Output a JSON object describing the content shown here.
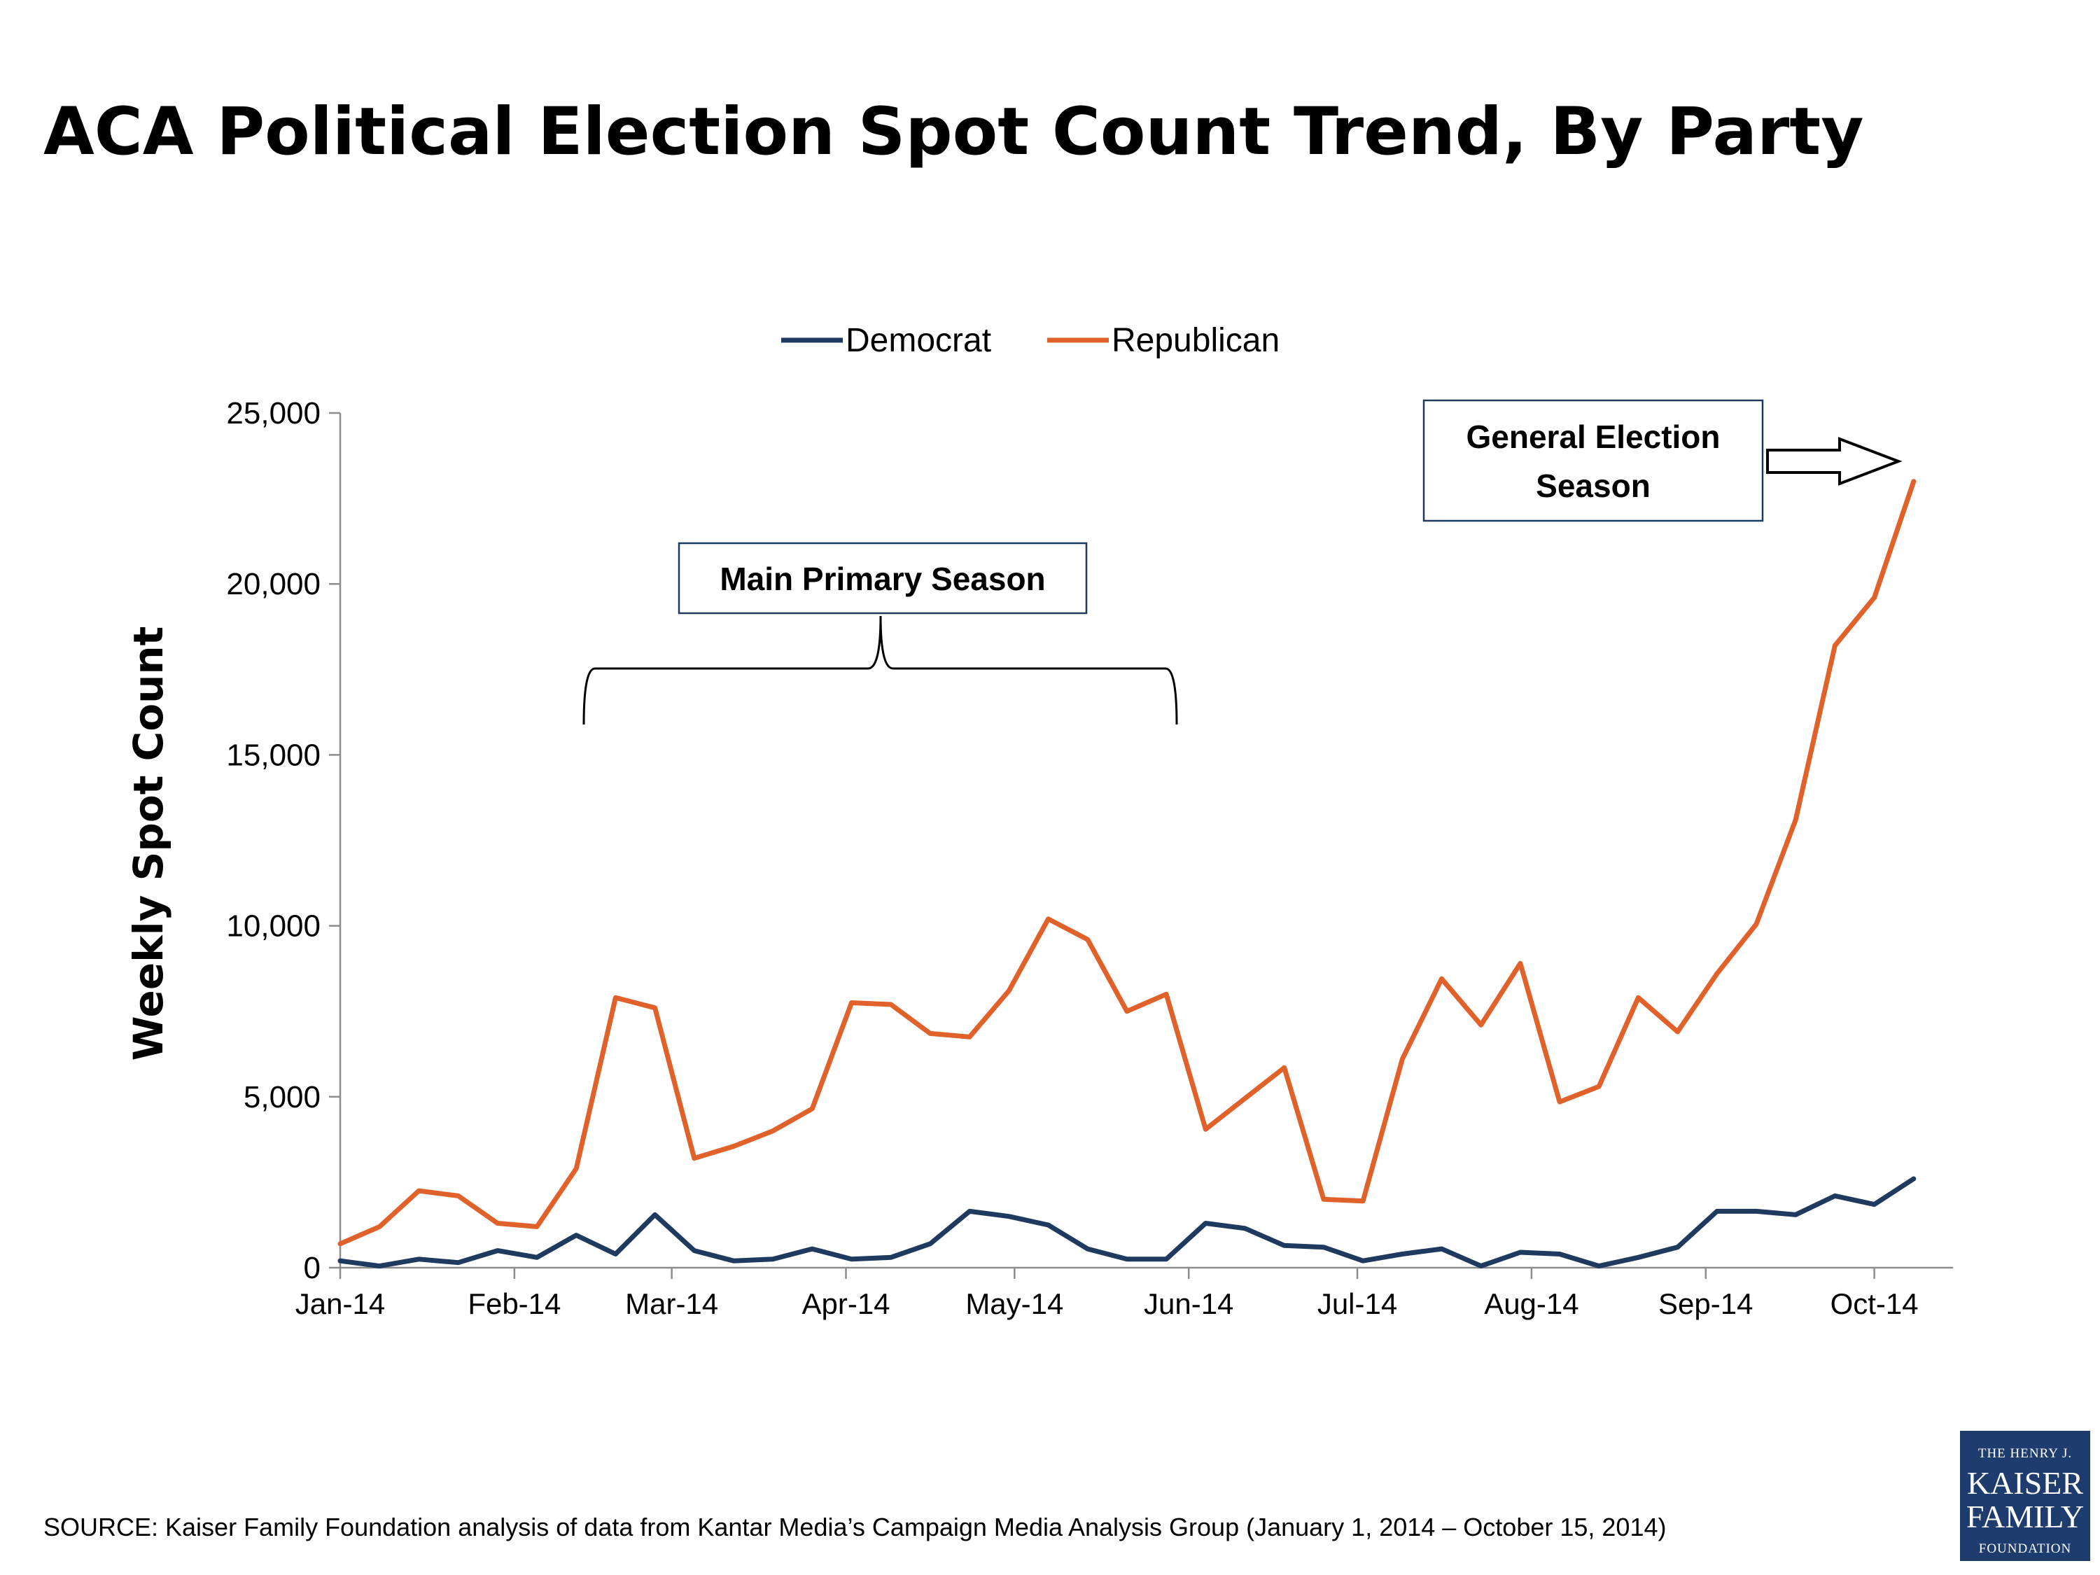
{
  "colors": {
    "democrat": "#1f3a5f",
    "republican": "#e0622a",
    "axis": "#8c8c8c",
    "logo_bg": "#1f3c6e"
  },
  "source_text": "SOURCE: Kaiser Family Foundation analysis of data from Kantar Media’s Campaign Media Analysis Group (January 1, 2014 – October 15, 2014)",
  "logo": {
    "line1": "THE HENRY J.",
    "line2": "KAISER",
    "line3": "FAMILY",
    "line4": "FOUNDATION"
  },
  "annotations": {
    "primary": "Main Primary Season",
    "general_line1": "General Election",
    "general_line2": "Season"
  },
  "chart_data": {
    "type": "line",
    "title": "ACA Political Election Spot Count Trend, By Party",
    "xlabel": "",
    "ylabel": "Weekly Spot Count",
    "ylim": [
      0,
      25000
    ],
    "yticks": [
      "0",
      "5,000",
      "10,000",
      "15,000",
      "20,000",
      "25,000"
    ],
    "ytick_values": [
      0,
      5000,
      10000,
      15000,
      20000,
      25000
    ],
    "xtick_labels": [
      "Jan-14",
      "Feb-14",
      "Mar-14",
      "Apr-14",
      "May-14",
      "Jun-14",
      "Jul-14",
      "Aug-14",
      "Sep-14",
      "Oct-14"
    ],
    "xtick_dates": [
      "2014-01-01",
      "2014-02-01",
      "2014-03-01",
      "2014-04-01",
      "2014-05-01",
      "2014-06-01",
      "2014-07-01",
      "2014-08-01",
      "2014-09-01",
      "2014-10-01"
    ],
    "x_range": [
      "2014-01-01",
      "2014-10-15"
    ],
    "legend_position": "top-center",
    "grid": false,
    "x": [
      "2014-01-01",
      "2014-01-08",
      "2014-01-15",
      "2014-01-22",
      "2014-01-29",
      "2014-02-05",
      "2014-02-12",
      "2014-02-19",
      "2014-02-26",
      "2014-03-05",
      "2014-03-12",
      "2014-03-19",
      "2014-03-26",
      "2014-04-02",
      "2014-04-09",
      "2014-04-16",
      "2014-04-23",
      "2014-04-30",
      "2014-05-07",
      "2014-05-14",
      "2014-05-21",
      "2014-05-28",
      "2014-06-04",
      "2014-06-11",
      "2014-06-18",
      "2014-06-25",
      "2014-07-02",
      "2014-07-09",
      "2014-07-16",
      "2014-07-23",
      "2014-07-30",
      "2014-08-06",
      "2014-08-13",
      "2014-08-20",
      "2014-08-27",
      "2014-09-03",
      "2014-09-10",
      "2014-09-17",
      "2014-09-24",
      "2014-10-01",
      "2014-10-08"
    ],
    "series": [
      {
        "name": "Democrat",
        "values": [
          200,
          50,
          250,
          150,
          500,
          300,
          950,
          400,
          1550,
          500,
          200,
          250,
          550,
          250,
          300,
          700,
          1650,
          1500,
          1250,
          550,
          250,
          250,
          1300,
          1150,
          650,
          600,
          200,
          400,
          550,
          50,
          450,
          400,
          50,
          300,
          600,
          1650,
          1650,
          1550,
          2100,
          1850,
          2600
        ]
      },
      {
        "name": "Republican",
        "values": [
          700,
          1200,
          2250,
          2100,
          1300,
          1200,
          2900,
          7900,
          7600,
          3200,
          3550,
          4000,
          4650,
          7750,
          7700,
          6850,
          6750,
          8100,
          10200,
          9600,
          7500,
          8000,
          4050,
          4950,
          5850,
          2000,
          1950,
          6100,
          8450,
          7100,
          8900,
          4850,
          5300,
          7900,
          6900,
          8600,
          10050,
          13100,
          18200,
          19600,
          23000
        ]
      }
    ]
  }
}
